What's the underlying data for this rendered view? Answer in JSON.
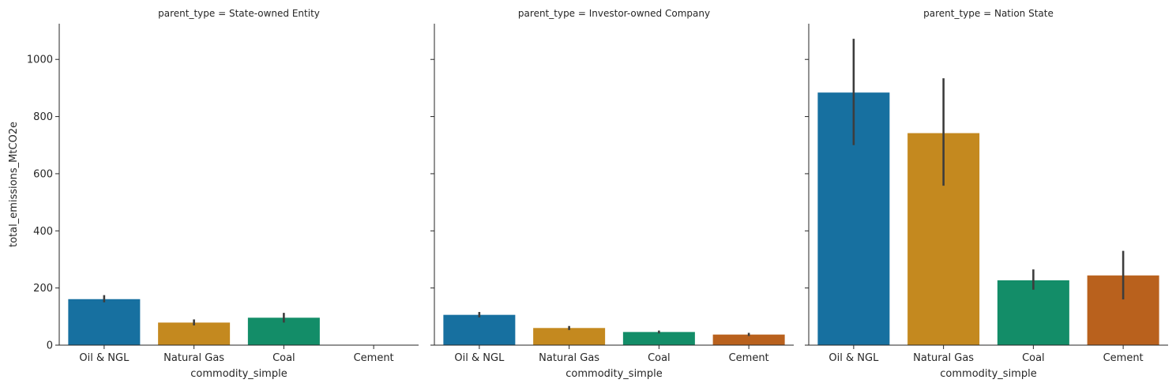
{
  "chart_data": [
    {
      "type": "bar",
      "title": "parent_type = State-owned Entity",
      "xlabel": "commodity_simple",
      "ylabel": "total_emissions_MtCO2e",
      "categories": [
        "Oil & NGL",
        "Natural Gas",
        "Coal",
        "Cement"
      ],
      "values": [
        161,
        79,
        96,
        null
      ],
      "error_low": [
        150,
        69,
        79,
        null
      ],
      "error_high": [
        175,
        90,
        113,
        null
      ],
      "ylim": [
        0,
        1125
      ],
      "yticks": [
        0,
        200,
        400,
        600,
        800,
        1000
      ]
    },
    {
      "type": "bar",
      "title": "parent_type = Investor-owned Company",
      "xlabel": "commodity_simple",
      "ylabel": "",
      "categories": [
        "Oil & NGL",
        "Natural Gas",
        "Coal",
        "Cement"
      ],
      "values": [
        106,
        60,
        46,
        37
      ],
      "error_low": [
        97,
        53,
        41,
        32
      ],
      "error_high": [
        116,
        67,
        51,
        43
      ],
      "ylim": [
        0,
        1125
      ],
      "yticks": [
        0,
        200,
        400,
        600,
        800,
        1000
      ]
    },
    {
      "type": "bar",
      "title": "parent_type = Nation State",
      "xlabel": "commodity_simple",
      "ylabel": "",
      "categories": [
        "Oil & NGL",
        "Natural Gas",
        "Coal",
        "Cement"
      ],
      "values": [
        884,
        742,
        227,
        244
      ],
      "error_low": [
        700,
        558,
        194,
        160
      ],
      "error_high": [
        1072,
        934,
        265,
        330
      ],
      "ylim": [
        0,
        1125
      ],
      "yticks": [
        0,
        200,
        400,
        600,
        800,
        1000
      ]
    }
  ],
  "colors": [
    "#1770a0",
    "#c4891f",
    "#138d68",
    "#b9611d"
  ],
  "error_color": "#3d3d3d"
}
